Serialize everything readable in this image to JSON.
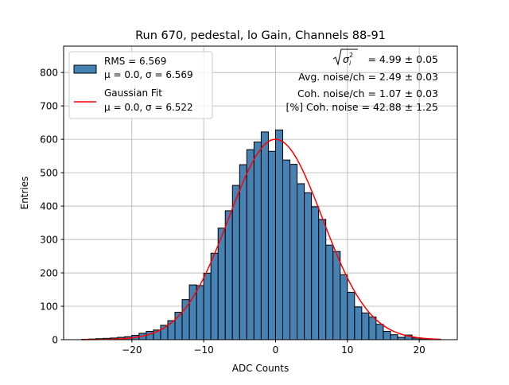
{
  "chart_data": {
    "type": "bar",
    "title": "Run 670, pedestal, lo Gain, Channels 88-91",
    "xlabel": "ADC Counts",
    "ylabel": "Entries",
    "xlim": [
      -29.5,
      25.3
    ],
    "ylim": [
      0,
      879
    ],
    "xticks": [
      -20,
      -10,
      0,
      10,
      20
    ],
    "yticks": [
      0,
      100,
      200,
      300,
      400,
      500,
      600,
      700,
      800
    ],
    "grid": true,
    "bar_color": "#4682b4",
    "fit_color": "#ff0000",
    "bin_width": 1,
    "bin_left_edges": [
      -27,
      -26,
      -25,
      -24,
      -23,
      -22,
      -21,
      -20,
      -19,
      -18,
      -17,
      -16,
      -15,
      -14,
      -13,
      -12,
      -11,
      -10,
      -9,
      -8,
      -7,
      -6,
      -5,
      -4,
      -3,
      -2,
      -1,
      0,
      1,
      2,
      3,
      4,
      5,
      6,
      7,
      8,
      9,
      10,
      11,
      12,
      13,
      14,
      15,
      16,
      17,
      18,
      19,
      20,
      21,
      22
    ],
    "values": [
      1,
      2,
      3,
      4,
      5,
      7,
      9,
      13,
      19,
      25,
      29,
      43,
      57,
      82,
      120,
      164,
      162,
      199,
      259,
      334,
      386,
      462,
      524,
      569,
      592,
      622,
      564,
      628,
      538,
      525,
      467,
      440,
      398,
      360,
      283,
      264,
      194,
      142,
      98,
      80,
      68,
      46,
      25,
      15,
      7,
      14,
      5,
      3,
      2,
      1
    ],
    "fit": {
      "type": "gaussian",
      "mu": 0.0,
      "sigma": 6.522,
      "amplitude": 600,
      "range": [
        -27,
        23
      ]
    },
    "legend": {
      "placement": "top-left",
      "entries": [
        {
          "line1": "RMS = 6.569",
          "line2": "μ = 0.0, σ = 6.569"
        },
        {
          "line1": "Gaussian Fit",
          "line2": "μ = 0.0, σ = 6.522"
        }
      ]
    },
    "annotations": {
      "sigma_label": "= 4.99 ± 0.05",
      "avg_noise": "Avg. noise/ch = 2.49 ± 0.03",
      "coh_noise": "Coh. noise/ch = 1.07 ± 0.03",
      "coh_pct": "[%] Coh. noise = 42.88 ± 1.25"
    }
  }
}
